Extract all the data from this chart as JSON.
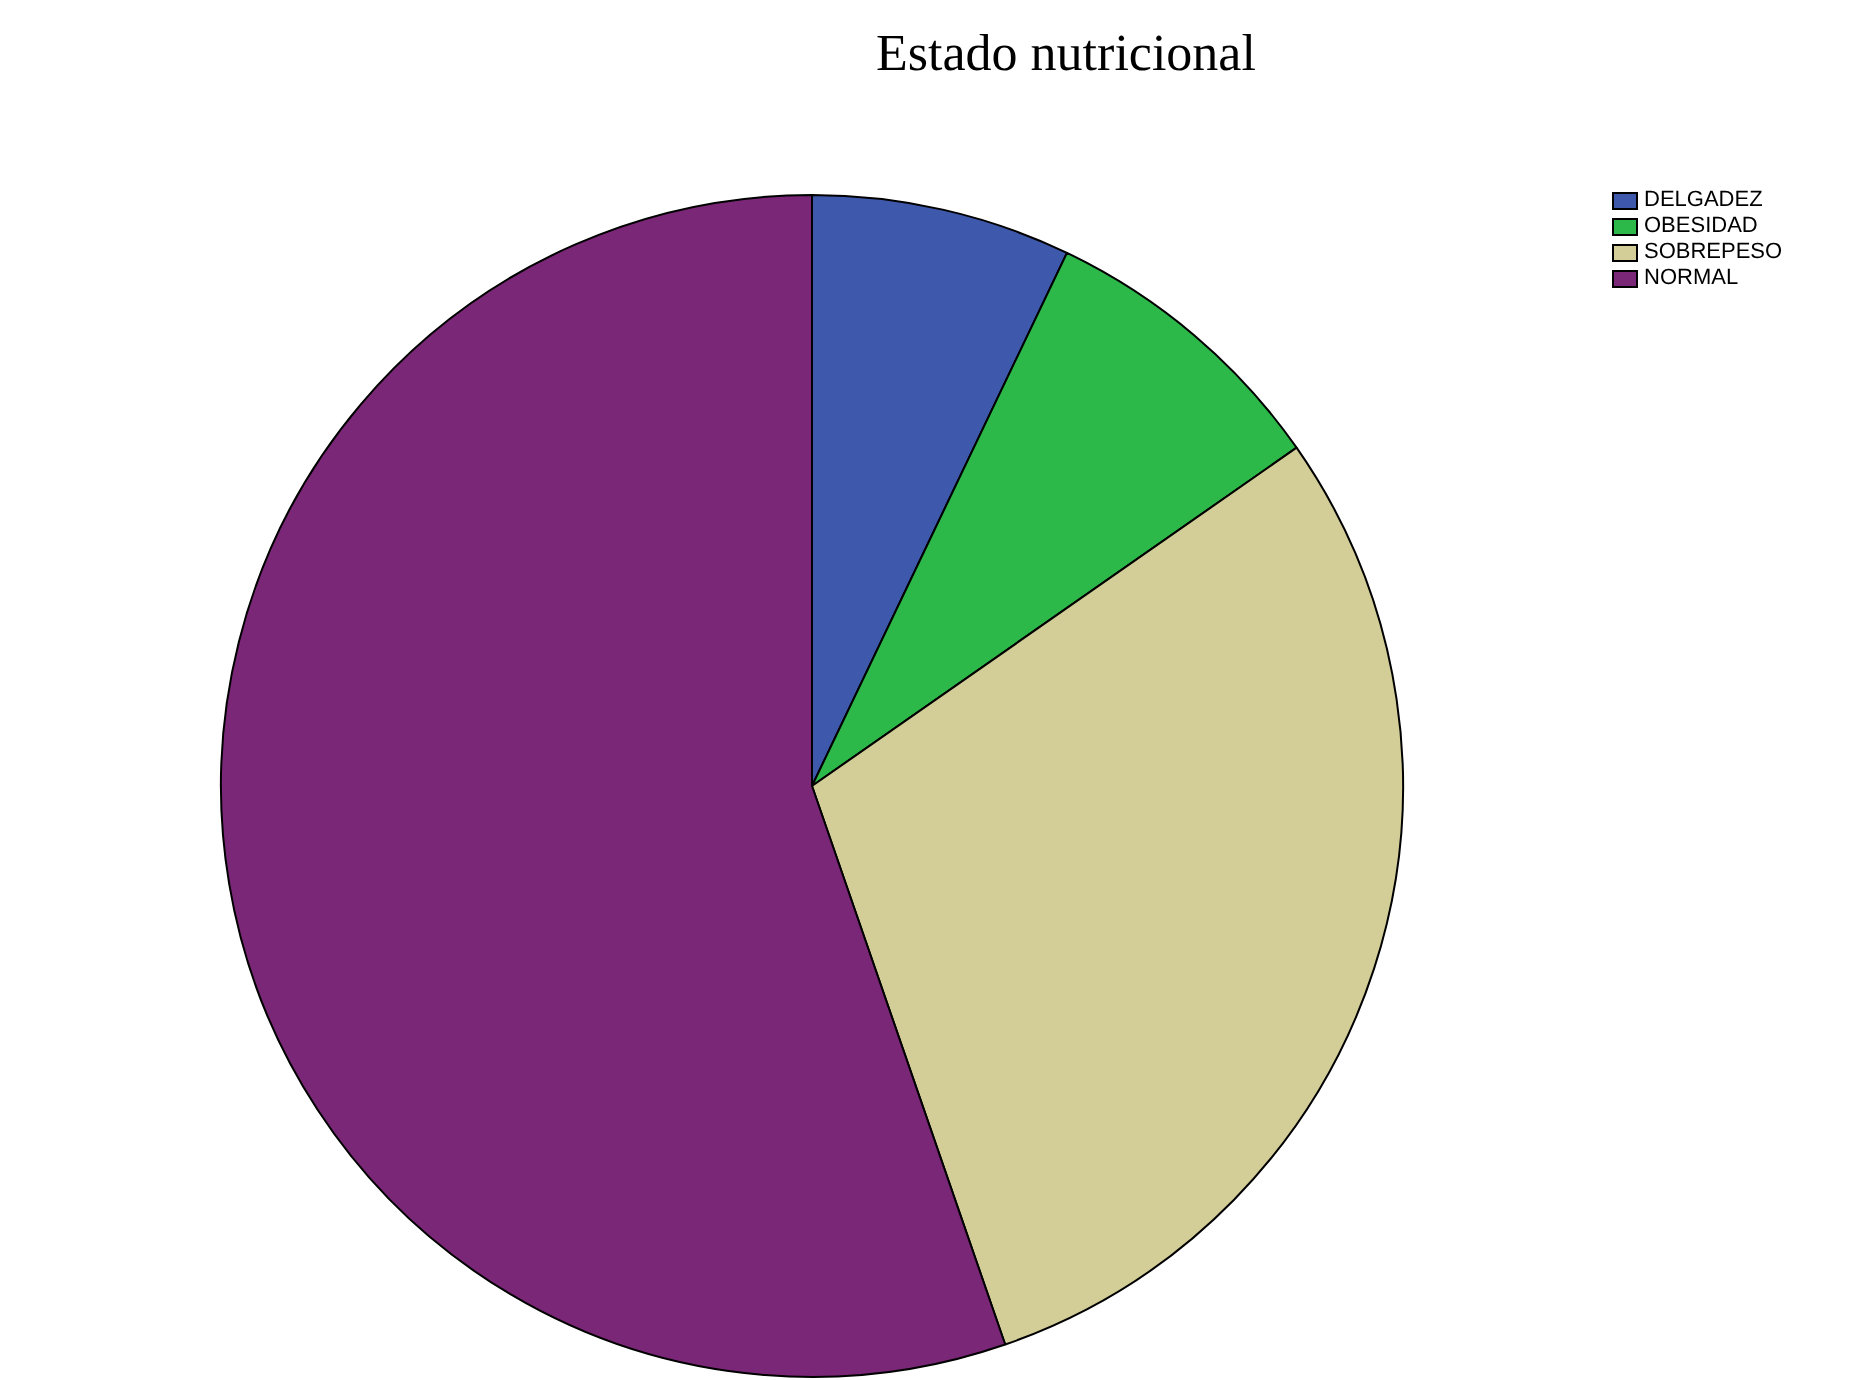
{
  "chart_data": {
    "type": "pie",
    "title": "Estado nutricional",
    "categories": [
      "DELGADEZ",
      "OBESIDAD",
      "SOBREPESO",
      "NORMAL"
    ],
    "values": [
      7.1,
      8.2,
      29.4,
      55.3
    ],
    "colors": [
      "#3e58ac",
      "#2db84a",
      "#d3ce97",
      "#7b2777"
    ],
    "legend": "top right"
  }
}
